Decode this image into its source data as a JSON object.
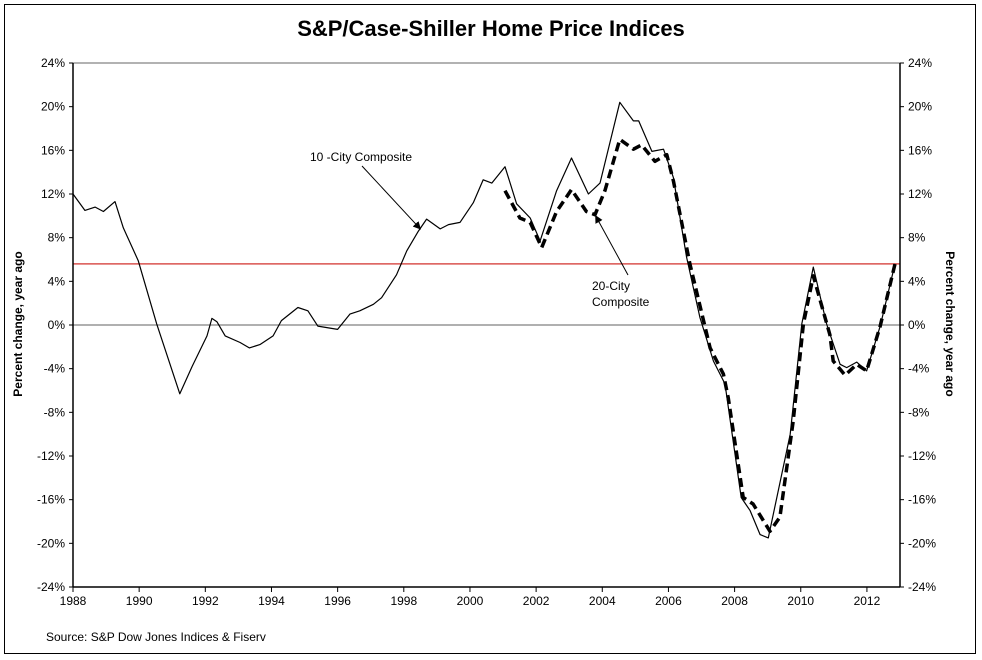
{
  "chart_data": {
    "type": "line",
    "title": "S&P/Case-Shiller Home Price Indices",
    "ylabel_left": "Percent change, year ago",
    "ylabel_right": "Percent change, year ago",
    "source": "Source: S&P Dow Jones Indices & Fiserv",
    "xlim": [
      1988,
      2013
    ],
    "ylim": [
      -24,
      24
    ],
    "x_ticks": [
      "1988",
      "1990",
      "1992",
      "1994",
      "1996",
      "1998",
      "2000",
      "2002",
      "2004",
      "2006",
      "2008",
      "2010",
      "2012"
    ],
    "y_ticks": [
      "24%",
      "20%",
      "16%",
      "12%",
      "8%",
      "4%",
      "0%",
      "-4%",
      "-8%",
      "-12%",
      "-16%",
      "-20%",
      "-24%"
    ],
    "grid": false,
    "zero_line_color": "#808080",
    "reference_line": {
      "value": 5.6,
      "color": "#d9534f"
    },
    "series": [
      {
        "name": "10 -City Composite",
        "style": "solid",
        "color": "#000000",
        "points": [
          [
            1988.0,
            12.0
          ],
          [
            1988.36,
            10.5
          ],
          [
            1988.67,
            10.8
          ],
          [
            1988.92,
            10.4
          ],
          [
            1989.27,
            11.3
          ],
          [
            1989.52,
            8.9
          ],
          [
            1989.97,
            5.9
          ],
          [
            1990.53,
            0.1
          ],
          [
            1991.23,
            -6.3
          ],
          [
            1991.6,
            -3.8
          ],
          [
            1992.05,
            -1.0
          ],
          [
            1992.2,
            0.6
          ],
          [
            1992.35,
            0.3
          ],
          [
            1992.6,
            -1.0
          ],
          [
            1993.05,
            -1.6
          ],
          [
            1993.33,
            -2.1
          ],
          [
            1993.65,
            -1.8
          ],
          [
            1994.05,
            -1.0
          ],
          [
            1994.3,
            0.4
          ],
          [
            1994.8,
            1.6
          ],
          [
            1995.1,
            1.3
          ],
          [
            1995.4,
            -0.1
          ],
          [
            1996.0,
            -0.4
          ],
          [
            1996.37,
            1.0
          ],
          [
            1996.67,
            1.3
          ],
          [
            1997.08,
            1.9
          ],
          [
            1997.33,
            2.5
          ],
          [
            1997.78,
            4.6
          ],
          [
            1998.09,
            6.8
          ],
          [
            1998.44,
            8.6
          ],
          [
            1998.69,
            9.7
          ],
          [
            1999.1,
            8.8
          ],
          [
            1999.35,
            9.2
          ],
          [
            1999.7,
            9.4
          ],
          [
            2000.1,
            11.2
          ],
          [
            2000.4,
            13.3
          ],
          [
            2000.66,
            13.0
          ],
          [
            2001.06,
            14.5
          ],
          [
            2001.41,
            11.1
          ],
          [
            2001.82,
            9.8
          ],
          [
            2002.12,
            7.7
          ],
          [
            2002.62,
            12.3
          ],
          [
            2003.07,
            15.3
          ],
          [
            2003.58,
            12.0
          ],
          [
            2003.93,
            13.0
          ],
          [
            2004.53,
            20.4
          ],
          [
            2004.94,
            18.7
          ],
          [
            2005.1,
            18.7
          ],
          [
            2005.5,
            15.9
          ],
          [
            2005.85,
            16.1
          ],
          [
            2006.15,
            13.5
          ],
          [
            2006.55,
            6.2
          ],
          [
            2006.95,
            0.7
          ],
          [
            2007.36,
            -3.3
          ],
          [
            2007.71,
            -5.4
          ],
          [
            2008.2,
            -15.8
          ],
          [
            2008.47,
            -17.0
          ],
          [
            2008.77,
            -19.2
          ],
          [
            2009.02,
            -19.5
          ],
          [
            2009.68,
            -10.0
          ],
          [
            2010.03,
            0.1
          ],
          [
            2010.38,
            5.3
          ],
          [
            2010.78,
            0.1
          ],
          [
            2011.19,
            -3.6
          ],
          [
            2011.39,
            -3.9
          ],
          [
            2011.69,
            -3.4
          ],
          [
            2011.99,
            -4.2
          ],
          [
            2012.4,
            -0.1
          ],
          [
            2012.85,
            5.6
          ]
        ]
      },
      {
        "name": "20-City Composite",
        "style": "dashed",
        "color": "#000000",
        "points": [
          [
            2001.06,
            12.3
          ],
          [
            2001.51,
            9.8
          ],
          [
            2001.82,
            9.4
          ],
          [
            2002.17,
            7.1
          ],
          [
            2002.62,
            10.4
          ],
          [
            2003.07,
            12.4
          ],
          [
            2003.52,
            10.4
          ],
          [
            2003.78,
            10.1
          ],
          [
            2004.08,
            12.3
          ],
          [
            2004.53,
            17.0
          ],
          [
            2004.94,
            16.1
          ],
          [
            2005.19,
            16.5
          ],
          [
            2005.59,
            15.0
          ],
          [
            2005.95,
            15.6
          ],
          [
            2006.15,
            13.2
          ],
          [
            2006.65,
            5.6
          ],
          [
            2007.26,
            -2.1
          ],
          [
            2007.66,
            -4.5
          ],
          [
            2007.81,
            -6.7
          ],
          [
            2008.26,
            -15.8
          ],
          [
            2008.56,
            -16.4
          ],
          [
            2009.07,
            -18.9
          ],
          [
            2009.37,
            -17.6
          ],
          [
            2009.77,
            -8.8
          ],
          [
            2010.08,
            0.1
          ],
          [
            2010.38,
            4.5
          ],
          [
            2010.88,
            -0.9
          ],
          [
            2010.98,
            -3.3
          ],
          [
            2011.34,
            -4.6
          ],
          [
            2011.69,
            -3.6
          ],
          [
            2011.99,
            -4.2
          ],
          [
            2012.4,
            -0.1
          ],
          [
            2012.85,
            5.6
          ]
        ]
      }
    ],
    "annotations": [
      {
        "text": "10 -City Composite",
        "series": "10 -City Composite",
        "arrow_to": [
          1998.5,
          8.8
        ]
      },
      {
        "text_lines": [
          "20-City",
          "Composite"
        ],
        "series": "20-City Composite",
        "arrow_to": [
          2003.8,
          10.0
        ]
      }
    ]
  }
}
